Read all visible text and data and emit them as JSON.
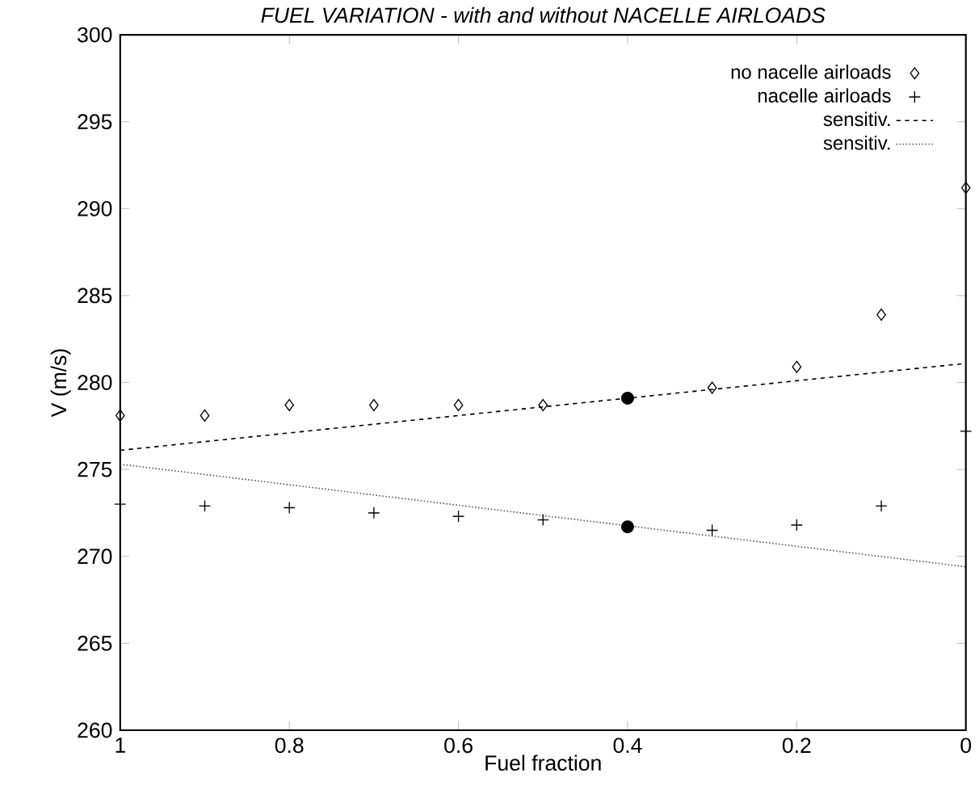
{
  "chart_data": {
    "type": "scatter",
    "title": "FUEL VARIATION - with and without NACELLE AIRLOADS",
    "xlabel": "Fuel fraction",
    "ylabel": "V (m/s)",
    "xlim": [
      1,
      0
    ],
    "ylim": [
      260,
      300
    ],
    "xticks": [
      1,
      0.8,
      0.6,
      0.4,
      0.2,
      0
    ],
    "yticks": [
      260,
      265,
      270,
      275,
      280,
      285,
      290,
      295,
      300
    ],
    "grid": false,
    "legend": "top right",
    "series": [
      {
        "name": "no nacelle airloads",
        "marker": "diamond",
        "color": "#000000",
        "x": [
          1,
          0.9,
          0.8,
          0.7,
          0.6,
          0.5,
          0.3,
          0.2,
          0.1,
          0
        ],
        "values": [
          278.1,
          278.1,
          278.7,
          278.7,
          278.7,
          278.7,
          279.7,
          280.9,
          283.9,
          291.2
        ]
      },
      {
        "name": "nacelle airloads",
        "marker": "cross",
        "color": "#000000",
        "x": [
          1,
          0.9,
          0.8,
          0.7,
          0.6,
          0.5,
          0.3,
          0.2,
          0.1,
          0
        ],
        "values": [
          273.0,
          272.9,
          272.8,
          272.5,
          272.3,
          272.1,
          271.5,
          271.8,
          272.9,
          277.2
        ]
      },
      {
        "name": "sensitiv.",
        "type": "line",
        "line_style": "dashed",
        "color": "#000000",
        "x": [
          1,
          0
        ],
        "values": [
          276.1,
          281.1
        ]
      },
      {
        "name": "sensitiv.",
        "type": "line",
        "line_style": "dotted",
        "color": "#555555",
        "x": [
          1,
          0
        ],
        "values": [
          275.3,
          269.4
        ]
      },
      {
        "marker": "circle",
        "color": "#000000",
        "x": [
          0.4,
          0.4
        ],
        "values": [
          279.1,
          271.7
        ]
      }
    ]
  }
}
